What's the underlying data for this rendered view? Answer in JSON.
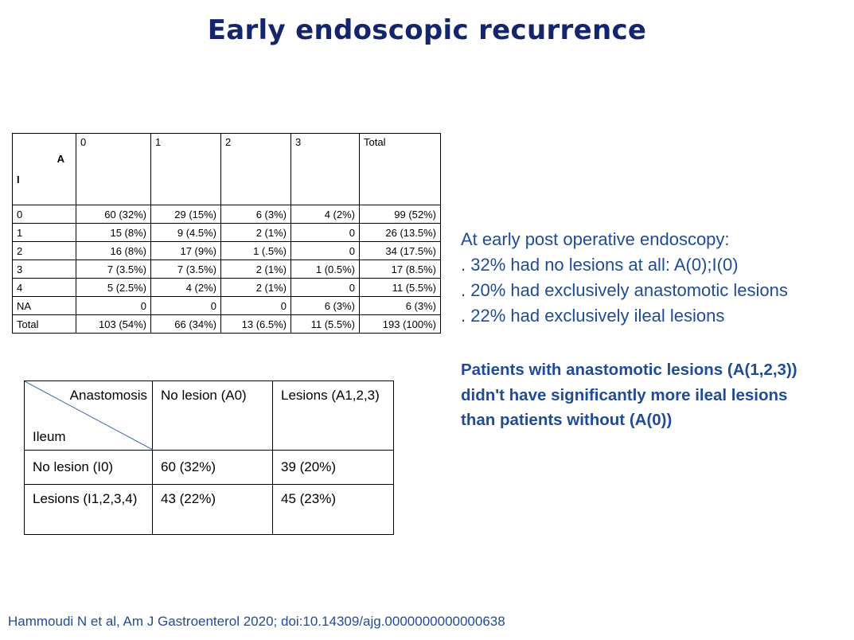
{
  "colors": {
    "title": "#14256b",
    "accent_text": "#1f4b97",
    "citation": "#1f4b97",
    "diagonal": "#3e6aa8"
  },
  "title": "Early endoscopic recurrence",
  "table1": {
    "corner": {
      "a": "A",
      "i": "I"
    },
    "headers": [
      "0",
      "1",
      "2",
      "3",
      "Total"
    ],
    "rows": [
      {
        "label": "0",
        "cells": [
          "60 (32%)",
          "29 (15%)",
          "6 (3%)",
          "4 (2%)",
          "99 (52%)"
        ]
      },
      {
        "label": "1",
        "cells": [
          "15 (8%)",
          "9 (4.5%)",
          "2 (1%)",
          "0",
          "26 (13.5%)"
        ]
      },
      {
        "label": "2",
        "cells": [
          "16 (8%)",
          "17 (9%)",
          "1 (.5%)",
          "0",
          "34 (17.5%)"
        ]
      },
      {
        "label": "3",
        "cells": [
          "7 (3.5%)",
          "7 (3.5%)",
          "2 (1%)",
          "1 (0.5%)",
          "17 (8.5%)"
        ]
      },
      {
        "label": "4",
        "cells": [
          "5 (2.5%)",
          "4 (2%)",
          "2 (1%)",
          "0",
          "11 (5.5%)"
        ]
      },
      {
        "label": "NA",
        "cells": [
          "0",
          "0",
          "0",
          "6 (3%)",
          "6 (3%)"
        ]
      },
      {
        "label": "Total",
        "cells": [
          "103 (54%)",
          "66 (34%)",
          "13 (6.5%)",
          "11 (5.5%)",
          "193 (100%)"
        ]
      }
    ]
  },
  "table2": {
    "corner_top": "Anastomosis",
    "corner_bottom": "Ileum",
    "headers": [
      "No lesion (A0)",
      "Lesions (A1,2,3)"
    ],
    "rows": [
      {
        "label": "No lesion (I0)",
        "cells": [
          "60 (32%)",
          "39 (20%)"
        ]
      },
      {
        "label": "Lesions (I1,2,3,4)",
        "cells": [
          "43 (22%)",
          "45 (23%)"
        ]
      }
    ]
  },
  "side_text": {
    "lines": [
      "At early post operative endoscopy:",
      ". 32% had no lesions at all: A(0);I(0)",
      ". 20% had exclusively anastomotic lesions",
      ". 22% had exclusively ileal lesions"
    ],
    "bold_lines": [
      "Patients with anastomotic lesions (A(1,2,3))",
      "didn't have significantly more ileal lesions",
      "than patients without (A(0))"
    ]
  },
  "citation": "Hammoudi N et al, Am J Gastroenterol 2020; doi:10.14309/ajg.0000000000000638"
}
